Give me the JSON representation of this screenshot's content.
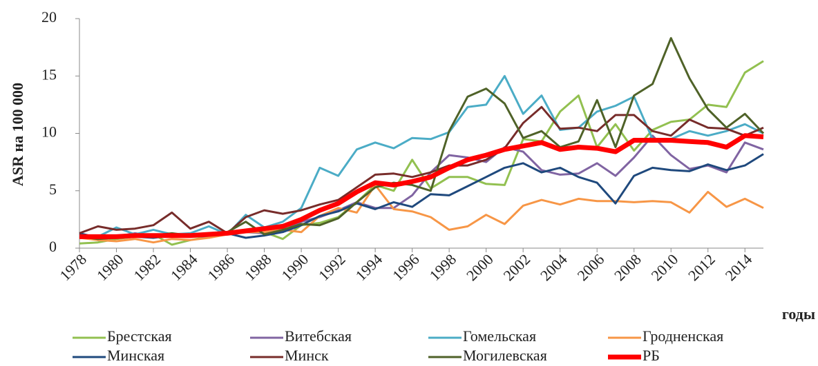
{
  "chart_data": {
    "type": "line",
    "y_label": "ASR на 100 000",
    "x_label": "годы",
    "x": [
      1978,
      1979,
      1980,
      1981,
      1982,
      1983,
      1984,
      1985,
      1986,
      1987,
      1988,
      1989,
      1990,
      1991,
      1992,
      1993,
      1994,
      1995,
      1996,
      1997,
      1998,
      1999,
      2000,
      2001,
      2002,
      2003,
      2004,
      2005,
      2006,
      2007,
      2008,
      2009,
      2010,
      2011,
      2012,
      2013,
      2014,
      2015
    ],
    "xlim": [
      1978,
      2015
    ],
    "xticks": [
      1978,
      1980,
      1982,
      1984,
      1986,
      1988,
      1990,
      1992,
      1994,
      1996,
      1998,
      2000,
      2002,
      2004,
      2006,
      2008,
      2010,
      2012,
      2014
    ],
    "ylim": [
      0,
      20
    ],
    "yticks": [
      0,
      5,
      10,
      15,
      20
    ],
    "grid": false,
    "legend": "bottom",
    "series": [
      {
        "name": "Брестская",
        "color": "#92c050",
        "values": [
          0.4,
          0.5,
          0.8,
          1.0,
          1.2,
          0.3,
          0.7,
          1.0,
          1.3,
          1.5,
          1.4,
          0.8,
          2.0,
          2.2,
          2.7,
          4.0,
          5.5,
          5.0,
          7.7,
          5.2,
          6.2,
          6.2,
          5.6,
          5.5,
          9.5,
          9.3,
          11.9,
          13.3,
          8.8,
          10.8,
          8.5,
          10.3,
          11.0,
          11.2,
          12.5,
          12.3,
          15.3,
          16.3
        ]
      },
      {
        "name": "Витебская",
        "color": "#8064a2",
        "values": [
          1.1,
          0.7,
          1.0,
          1.3,
          1.1,
          1.1,
          1.2,
          0.9,
          1.4,
          1.4,
          1.3,
          1.5,
          2.3,
          2.7,
          3.3,
          4.0,
          3.5,
          3.5,
          4.6,
          6.6,
          8.1,
          7.9,
          7.5,
          8.8,
          8.4,
          6.8,
          6.4,
          6.5,
          7.4,
          6.3,
          7.9,
          9.8,
          8.1,
          6.9,
          7.2,
          6.6,
          9.2,
          8.6
        ]
      },
      {
        "name": "Гомельская",
        "color": "#4bacc6",
        "values": [
          1.1,
          1.0,
          1.8,
          1.2,
          1.6,
          1.2,
          1.3,
          1.9,
          1.2,
          2.9,
          1.8,
          2.3,
          3.5,
          7.0,
          6.3,
          8.6,
          9.2,
          8.7,
          9.6,
          9.5,
          10.1,
          12.3,
          12.5,
          15.0,
          11.7,
          13.3,
          10.3,
          10.5,
          11.9,
          12.4,
          13.2,
          9.5,
          9.5,
          10.2,
          9.8,
          10.2,
          10.8,
          10.0
        ]
      },
      {
        "name": "Гродненская",
        "color": "#f79646",
        "values": [
          0.9,
          0.7,
          0.6,
          0.8,
          0.5,
          0.8,
          0.7,
          0.9,
          1.2,
          1.4,
          1.4,
          1.6,
          1.4,
          2.8,
          3.5,
          3.1,
          5.5,
          3.4,
          3.2,
          2.7,
          1.6,
          1.9,
          2.9,
          2.1,
          3.7,
          4.2,
          3.8,
          4.3,
          4.1,
          4.1,
          4.0,
          4.1,
          4.0,
          3.1,
          4.9,
          3.6,
          4.3,
          3.5
        ]
      },
      {
        "name": "Минская",
        "color": "#1f497d",
        "values": [
          1.3,
          0.9,
          1.0,
          1.0,
          0.9,
          1.1,
          1.2,
          1.2,
          1.3,
          0.9,
          1.1,
          1.4,
          2.0,
          2.8,
          3.2,
          3.9,
          3.4,
          4.0,
          3.6,
          4.7,
          4.6,
          5.4,
          6.2,
          7.0,
          7.4,
          6.6,
          7.0,
          6.2,
          5.7,
          3.9,
          6.3,
          7.0,
          6.8,
          6.7,
          7.3,
          6.8,
          7.2,
          8.2
        ]
      },
      {
        "name": "Минск",
        "color": "#772c2a",
        "values": [
          1.3,
          1.9,
          1.6,
          1.7,
          2.0,
          3.1,
          1.7,
          2.3,
          1.3,
          2.7,
          3.3,
          3.0,
          3.3,
          3.8,
          4.2,
          5.3,
          6.4,
          6.5,
          6.2,
          6.6,
          7.2,
          7.2,
          7.7,
          8.7,
          10.9,
          12.3,
          10.4,
          10.5,
          10.2,
          11.6,
          11.6,
          10.2,
          9.8,
          11.2,
          10.5,
          10.4,
          9.8,
          10.5
        ]
      },
      {
        "name": "Могилевская",
        "color": "#4f6228",
        "values": [
          1.0,
          0.8,
          0.9,
          1.0,
          1.1,
          1.3,
          1.1,
          1.2,
          1.4,
          2.3,
          1.2,
          1.6,
          2.1,
          2.0,
          2.6,
          4.0,
          5.3,
          5.7,
          5.5,
          5.0,
          10.2,
          13.2,
          13.9,
          12.6,
          9.6,
          10.2,
          8.8,
          9.3,
          12.9,
          8.8,
          13.3,
          14.3,
          18.3,
          14.8,
          12.1,
          10.5,
          11.7,
          10.0
        ]
      },
      {
        "name": "РБ",
        "color": "#ff0000",
        "values": [
          1.0,
          1.0,
          1.0,
          1.1,
          1.1,
          1.1,
          1.1,
          1.2,
          1.3,
          1.5,
          1.7,
          1.9,
          2.5,
          3.3,
          3.9,
          4.9,
          5.7,
          5.5,
          5.8,
          6.2,
          7.0,
          7.7,
          8.1,
          8.6,
          8.9,
          9.2,
          8.6,
          8.8,
          8.7,
          8.4,
          9.4,
          9.4,
          9.4,
          9.3,
          9.2,
          8.8,
          9.8,
          9.7
        ]
      }
    ]
  }
}
